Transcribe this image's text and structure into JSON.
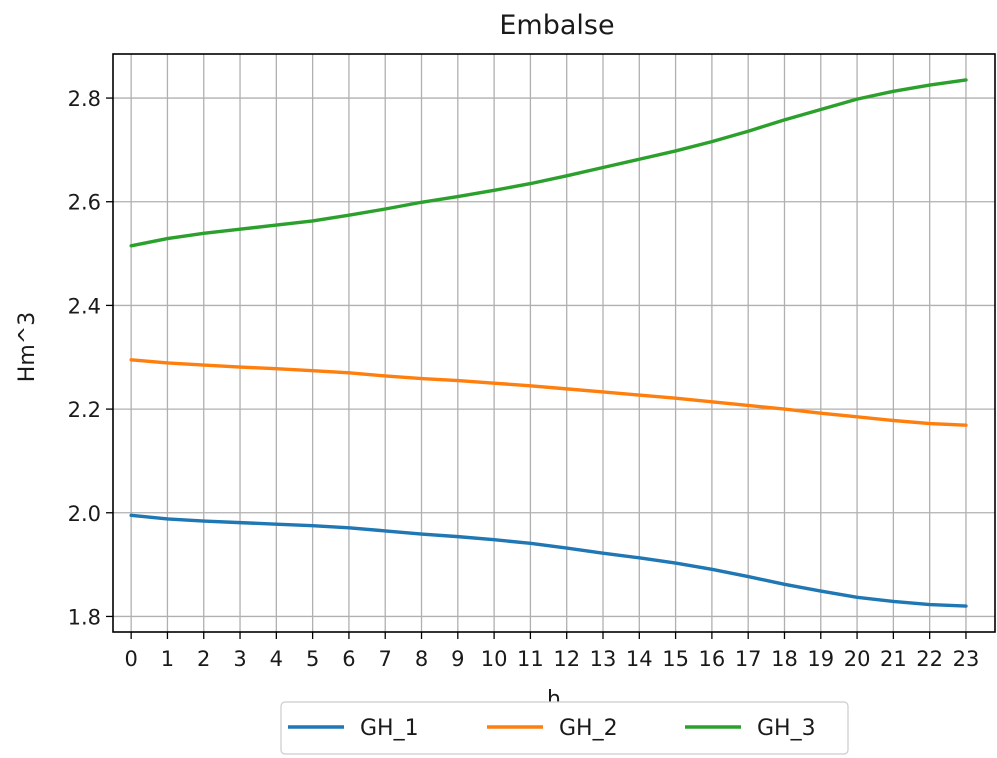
{
  "chart_data": {
    "type": "line",
    "title": "Embalse",
    "xlabel": "h",
    "ylabel": "Hm^3",
    "x": [
      0,
      1,
      2,
      3,
      4,
      5,
      6,
      7,
      8,
      9,
      10,
      11,
      12,
      13,
      14,
      15,
      16,
      17,
      18,
      19,
      20,
      21,
      22,
      23
    ],
    "xlim": [
      -0.5,
      23.8
    ],
    "ylim": [
      1.77,
      2.885
    ],
    "yticks": [
      1.8,
      2.0,
      2.2,
      2.4,
      2.6,
      2.8
    ],
    "ytick_labels": [
      "1.8",
      "2.0",
      "2.2",
      "2.4",
      "2.6",
      "2.8"
    ],
    "xtick_labels": [
      "0",
      "1",
      "2",
      "3",
      "4",
      "5",
      "6",
      "7",
      "8",
      "9",
      "10",
      "11",
      "12",
      "13",
      "14",
      "15",
      "16",
      "17",
      "18",
      "19",
      "20",
      "21",
      "22",
      "23"
    ],
    "grid": true,
    "legend_position": "bottom-center",
    "series": [
      {
        "name": "GH_1",
        "color": "#1f77b4",
        "values": [
          1.995,
          1.988,
          1.984,
          1.981,
          1.978,
          1.975,
          1.971,
          1.965,
          1.959,
          1.954,
          1.948,
          1.941,
          1.932,
          1.922,
          1.913,
          1.903,
          1.891,
          1.877,
          1.862,
          1.849,
          1.837,
          1.829,
          1.823,
          1.82
        ]
      },
      {
        "name": "GH_2",
        "color": "#ff7f0e",
        "values": [
          2.295,
          2.289,
          2.285,
          2.281,
          2.278,
          2.274,
          2.27,
          2.264,
          2.259,
          2.255,
          2.25,
          2.245,
          2.239,
          2.233,
          2.227,
          2.221,
          2.214,
          2.207,
          2.2,
          2.192,
          2.185,
          2.178,
          2.172,
          2.169
        ]
      },
      {
        "name": "GH_3",
        "color": "#2ca02c",
        "values": [
          2.515,
          2.529,
          2.539,
          2.547,
          2.555,
          2.563,
          2.574,
          2.586,
          2.599,
          2.61,
          2.622,
          2.635,
          2.65,
          2.666,
          2.682,
          2.698,
          2.716,
          2.736,
          2.758,
          2.778,
          2.798,
          2.813,
          2.825,
          2.835
        ]
      }
    ]
  }
}
